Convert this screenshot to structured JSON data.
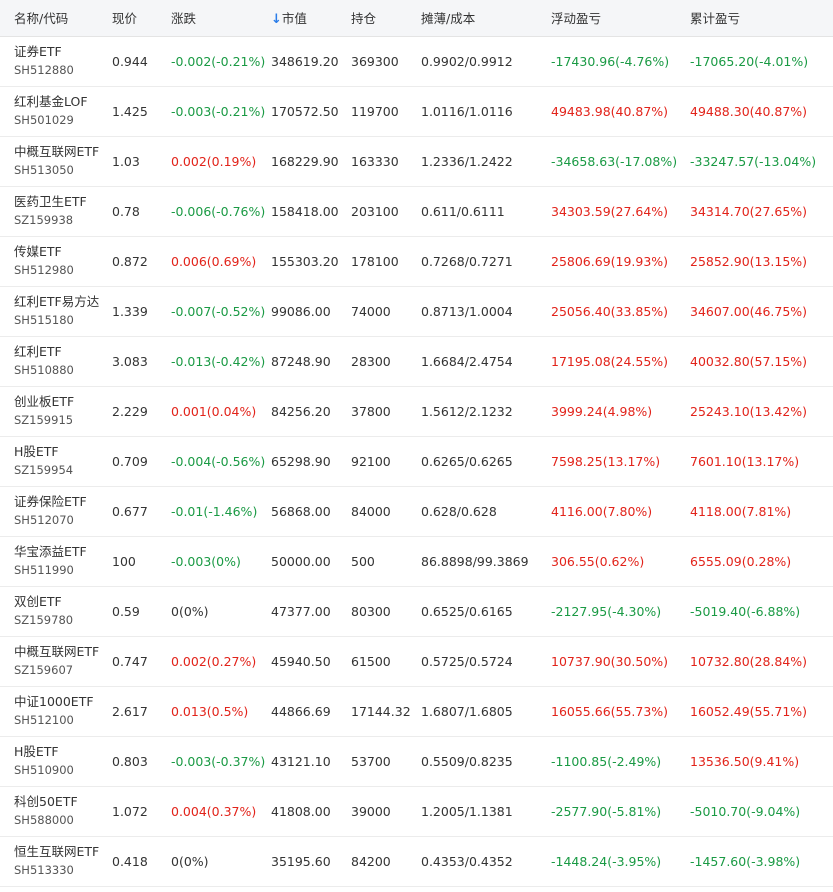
{
  "headers": {
    "name": "名称/代码",
    "price": "现价",
    "change": "涨跌",
    "market_value": "市值",
    "position": "持仓",
    "cost": "摊薄/成本",
    "float_pl": "浮动盈亏",
    "total_pl": "累计盈亏"
  },
  "sort_icon": "arrow-down-icon",
  "colors": {
    "up": "#e2231a",
    "down": "#1a9a44",
    "sort": "#2b7de9"
  },
  "rows": [
    {
      "name": "证券ETF",
      "code": "SH512880",
      "price": "0.944",
      "change": "-0.002(-0.21%)",
      "value": "348619.20",
      "position": "369300",
      "cost": "0.9902/0.9912",
      "float_pl": "-17430.96(-4.76%)",
      "total_pl": "-17065.20(-4.01%)"
    },
    {
      "name": "红利基金LOF",
      "code": "SH501029",
      "price": "1.425",
      "change": "-0.003(-0.21%)",
      "value": "170572.50",
      "position": "119700",
      "cost": "1.0116/1.0116",
      "float_pl": "49483.98(40.87%)",
      "total_pl": "49488.30(40.87%)"
    },
    {
      "name": "中概互联网ETF",
      "code": "SH513050",
      "price": "1.03",
      "change": "0.002(0.19%)",
      "value": "168229.90",
      "position": "163330",
      "cost": "1.2336/1.2422",
      "float_pl": "-34658.63(-17.08%)",
      "total_pl": "-33247.57(-13.04%)"
    },
    {
      "name": "医药卫生ETF",
      "code": "SZ159938",
      "price": "0.78",
      "change": "-0.006(-0.76%)",
      "value": "158418.00",
      "position": "203100",
      "cost": "0.611/0.6111",
      "float_pl": "34303.59(27.64%)",
      "total_pl": "34314.70(27.65%)"
    },
    {
      "name": "传媒ETF",
      "code": "SH512980",
      "price": "0.872",
      "change": "0.006(0.69%)",
      "value": "155303.20",
      "position": "178100",
      "cost": "0.7268/0.7271",
      "float_pl": "25806.69(19.93%)",
      "total_pl": "25852.90(13.15%)"
    },
    {
      "name": "红利ETF易方达",
      "code": "SH515180",
      "price": "1.339",
      "change": "-0.007(-0.52%)",
      "value": "99086.00",
      "position": "74000",
      "cost": "0.8713/1.0004",
      "float_pl": "25056.40(33.85%)",
      "total_pl": "34607.00(46.75%)"
    },
    {
      "name": "红利ETF",
      "code": "SH510880",
      "price": "3.083",
      "change": "-0.013(-0.42%)",
      "value": "87248.90",
      "position": "28300",
      "cost": "1.6684/2.4754",
      "float_pl": "17195.08(24.55%)",
      "total_pl": "40032.80(57.15%)"
    },
    {
      "name": "创业板ETF",
      "code": "SZ159915",
      "price": "2.229",
      "change": "0.001(0.04%)",
      "value": "84256.20",
      "position": "37800",
      "cost": "1.5612/2.1232",
      "float_pl": "3999.24(4.98%)",
      "total_pl": "25243.10(13.42%)"
    },
    {
      "name": "H股ETF",
      "code": "SZ159954",
      "price": "0.709",
      "change": "-0.004(-0.56%)",
      "value": "65298.90",
      "position": "92100",
      "cost": "0.6265/0.6265",
      "float_pl": "7598.25(13.17%)",
      "total_pl": "7601.10(13.17%)"
    },
    {
      "name": "证券保险ETF",
      "code": "SH512070",
      "price": "0.677",
      "change": "-0.01(-1.46%)",
      "value": "56868.00",
      "position": "84000",
      "cost": "0.628/0.628",
      "float_pl": "4116.00(7.80%)",
      "total_pl": "4118.00(7.81%)"
    },
    {
      "name": "华宝添益ETF",
      "code": "SH511990",
      "price": "100",
      "change": "-0.003(0%)",
      "value": "50000.00",
      "position": "500",
      "cost": "86.8898/99.3869",
      "float_pl": "306.55(0.62%)",
      "total_pl": "6555.09(0.28%)"
    },
    {
      "name": "双创ETF",
      "code": "SZ159780",
      "price": "0.59",
      "change": "0(0%)",
      "value": "47377.00",
      "position": "80300",
      "cost": "0.6525/0.6165",
      "float_pl": "-2127.95(-4.30%)",
      "total_pl": "-5019.40(-6.88%)"
    },
    {
      "name": "中概互联网ETF",
      "code": "SZ159607",
      "price": "0.747",
      "change": "0.002(0.27%)",
      "value": "45940.50",
      "position": "61500",
      "cost": "0.5725/0.5724",
      "float_pl": "10737.90(30.50%)",
      "total_pl": "10732.80(28.84%)"
    },
    {
      "name": "中证1000ETF",
      "code": "SH512100",
      "price": "2.617",
      "change": "0.013(0.5%)",
      "value": "44866.69",
      "position": "17144.32",
      "cost": "1.6807/1.6805",
      "float_pl": "16055.66(55.73%)",
      "total_pl": "16052.49(55.71%)"
    },
    {
      "name": "H股ETF",
      "code": "SH510900",
      "price": "0.803",
      "change": "-0.003(-0.37%)",
      "value": "43121.10",
      "position": "53700",
      "cost": "0.5509/0.8235",
      "float_pl": "-1100.85(-2.49%)",
      "total_pl": "13536.50(9.41%)"
    },
    {
      "name": "科创50ETF",
      "code": "SH588000",
      "price": "1.072",
      "change": "0.004(0.37%)",
      "value": "41808.00",
      "position": "39000",
      "cost": "1.2005/1.1381",
      "float_pl": "-2577.90(-5.81%)",
      "total_pl": "-5010.70(-9.04%)"
    },
    {
      "name": "恒生互联网ETF",
      "code": "SH513330",
      "price": "0.418",
      "change": "0(0%)",
      "value": "35195.60",
      "position": "84200",
      "cost": "0.4353/0.4352",
      "float_pl": "-1448.24(-3.95%)",
      "total_pl": "-1457.60(-3.98%)"
    }
  ]
}
